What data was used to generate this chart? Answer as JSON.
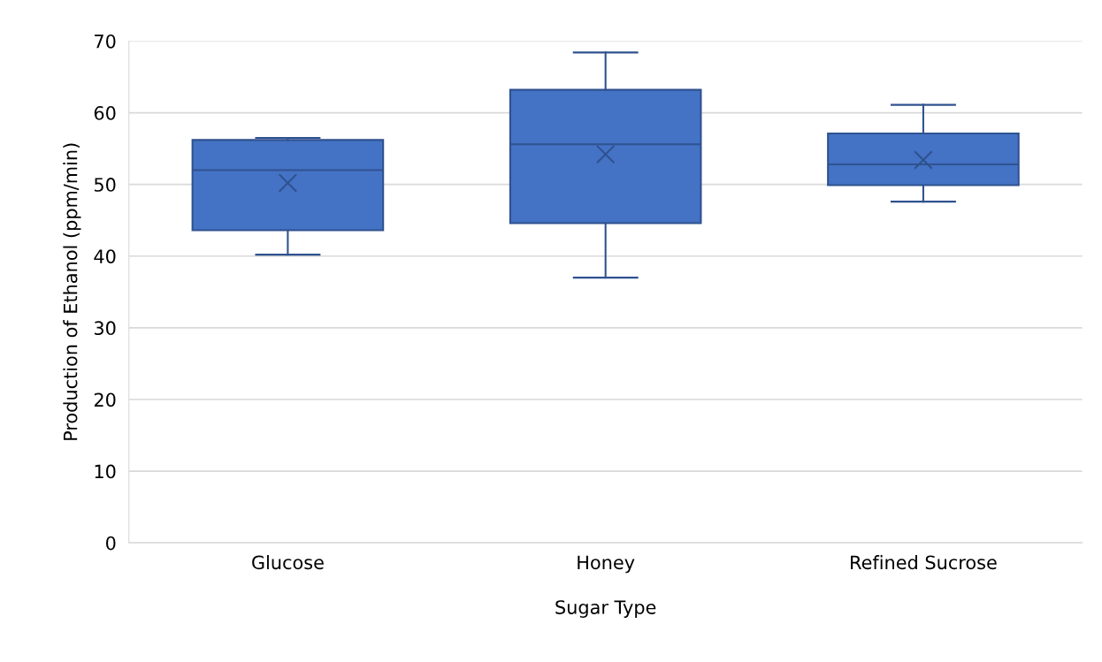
{
  "chart_data": {
    "type": "box",
    "xlabel": "Sugar Type",
    "ylabel": "Production of Ethanol (ppm/min)",
    "categories": [
      "Glucose",
      "Honey",
      "Refined Sucrose"
    ],
    "color": "#4472c4",
    "boxes": [
      {
        "low": 40.2,
        "q1": 43.6,
        "median": 52.0,
        "q3": 56.2,
        "high": 56.5,
        "mean": 50.2
      },
      {
        "low": 37.0,
        "q1": 44.6,
        "median": 55.6,
        "q3": 63.2,
        "high": 68.4,
        "mean": 54.2
      },
      {
        "low": 47.6,
        "q1": 49.9,
        "median": 52.8,
        "q3": 57.1,
        "high": 61.1,
        "mean": 53.4
      }
    ],
    "ylim": [
      0,
      70
    ],
    "yticks": [
      0,
      10,
      20,
      30,
      40,
      50,
      60,
      70
    ],
    "grid": "y"
  }
}
